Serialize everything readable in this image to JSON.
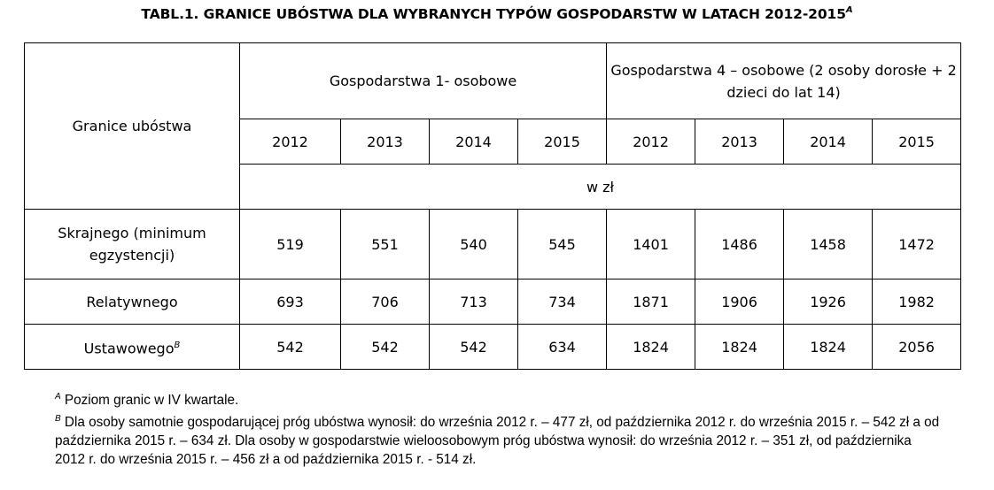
{
  "title": {
    "text": "TABL.1. GRANICE UBÓSTWA DLA WYBRANYCH TYPÓW GOSPODARSTW W LATACH 2012-2015",
    "sup": "A"
  },
  "table": {
    "row_header_label": "Granice ubóstwa",
    "groups": [
      "Gospodarstwa 1- osobowe",
      "Gospodarstwa 4 – osobowe (2 osoby dorosłe + 2 dzieci do lat 14)"
    ],
    "years": [
      "2012",
      "2013",
      "2014",
      "2015",
      "2012",
      "2013",
      "2014",
      "2015"
    ],
    "unit": "w zł",
    "rows": [
      {
        "label": "Skrajnego (minimum egzystencji)",
        "sup": "",
        "values": [
          "519",
          "551",
          "540",
          "545",
          "1401",
          "1486",
          "1458",
          "1472"
        ]
      },
      {
        "label": "Relatywnego",
        "sup": "",
        "values": [
          "693",
          "706",
          "713",
          "734",
          "1871",
          "1906",
          "1926",
          "1982"
        ]
      },
      {
        "label": "Ustawowego",
        "sup": "B",
        "values": [
          "542",
          "542",
          "542",
          "634",
          "1824",
          "1824",
          "1824",
          "2056"
        ]
      }
    ]
  },
  "footnotes": [
    {
      "mark": "A",
      "text": " Poziom granic w IV kwartale."
    },
    {
      "mark": "B",
      "text": " Dla osoby samotnie gospodarującej próg ubóstwa wynosił: do września 2012 r. – 477 zł, od października 2012 r. do września 2015 r. – 542 zł a od października 2015 r. – 634 zł. Dla osoby w gospodarstwie wieloosobowym próg ubóstwa wynosił: do września 2012 r. – 351 zł, od października 2012 r. do września 2015 r. – 456 zł a od października 2015 r. - 514 zł."
    }
  ]
}
